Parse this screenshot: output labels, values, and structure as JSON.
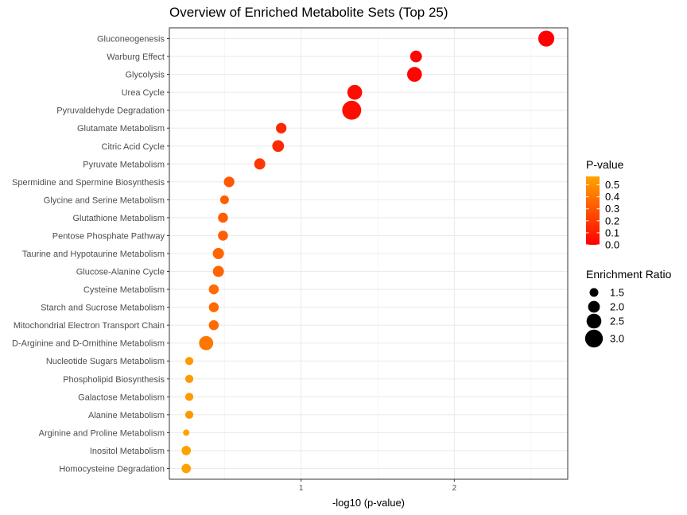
{
  "chart_data": {
    "type": "scatter",
    "title": "Overview of Enriched Metabolite Sets (Top 25)",
    "xlabel": "-log10 (p-value)",
    "ylabel": "",
    "xlim": [
      0.14,
      2.74
    ],
    "x_ticks": [
      1,
      2
    ],
    "x_tick_labels": [
      "1",
      "2"
    ],
    "grid": true,
    "points": [
      {
        "name": "Gluconeogenesis",
        "x": 2.6,
        "p_value": 0.0025,
        "enrichment_ratio": 2.7
      },
      {
        "name": "Warburg Effect",
        "x": 1.75,
        "p_value": 0.018,
        "enrichment_ratio": 2.0
      },
      {
        "name": "Glycolysis",
        "x": 1.74,
        "p_value": 0.018,
        "enrichment_ratio": 2.5
      },
      {
        "name": "Urea Cycle",
        "x": 1.35,
        "p_value": 0.045,
        "enrichment_ratio": 2.5
      },
      {
        "name": "Pyruvaldehyde Degradation",
        "x": 1.33,
        "p_value": 0.047,
        "enrichment_ratio": 3.2
      },
      {
        "name": "Glutamate Metabolism",
        "x": 0.87,
        "p_value": 0.135,
        "enrichment_ratio": 1.8
      },
      {
        "name": "Citric Acid Cycle",
        "x": 0.85,
        "p_value": 0.14,
        "enrichment_ratio": 2.0
      },
      {
        "name": "Pyruvate Metabolism",
        "x": 0.73,
        "p_value": 0.19,
        "enrichment_ratio": 1.9
      },
      {
        "name": "Spermidine and Spermine Biosynthesis",
        "x": 0.53,
        "p_value": 0.3,
        "enrichment_ratio": 1.8
      },
      {
        "name": "Glycine and Serine Metabolism",
        "x": 0.5,
        "p_value": 0.32,
        "enrichment_ratio": 1.5
      },
      {
        "name": "Glutathione Metabolism",
        "x": 0.49,
        "p_value": 0.32,
        "enrichment_ratio": 1.7
      },
      {
        "name": "Pentose Phosphate Pathway",
        "x": 0.49,
        "p_value": 0.32,
        "enrichment_ratio": 1.7
      },
      {
        "name": "Taurine and Hypotaurine Metabolism",
        "x": 0.46,
        "p_value": 0.35,
        "enrichment_ratio": 1.9
      },
      {
        "name": "Glucose-Alanine Cycle",
        "x": 0.46,
        "p_value": 0.35,
        "enrichment_ratio": 1.9
      },
      {
        "name": "Cysteine Metabolism",
        "x": 0.43,
        "p_value": 0.37,
        "enrichment_ratio": 1.7
      },
      {
        "name": "Starch and Sucrose Metabolism",
        "x": 0.43,
        "p_value": 0.37,
        "enrichment_ratio": 1.7
      },
      {
        "name": "Mitochondrial Electron Transport Chain",
        "x": 0.43,
        "p_value": 0.37,
        "enrichment_ratio": 1.7
      },
      {
        "name": "D-Arginine and D-Ornithine Metabolism",
        "x": 0.38,
        "p_value": 0.41,
        "enrichment_ratio": 2.4
      },
      {
        "name": "Nucleotide Sugars Metabolism",
        "x": 0.27,
        "p_value": 0.53,
        "enrichment_ratio": 1.4
      },
      {
        "name": "Phospholipid Biosynthesis",
        "x": 0.27,
        "p_value": 0.53,
        "enrichment_ratio": 1.4
      },
      {
        "name": "Galactose Metabolism",
        "x": 0.27,
        "p_value": 0.53,
        "enrichment_ratio": 1.4
      },
      {
        "name": "Alanine Metabolism",
        "x": 0.27,
        "p_value": 0.53,
        "enrichment_ratio": 1.4
      },
      {
        "name": "Arginine and Proline Metabolism",
        "x": 0.25,
        "p_value": 0.56,
        "enrichment_ratio": 1.1
      },
      {
        "name": "Inositol Metabolism",
        "x": 0.25,
        "p_value": 0.56,
        "enrichment_ratio": 1.6
      },
      {
        "name": "Homocysteine Degradation",
        "x": 0.25,
        "p_value": 0.56,
        "enrichment_ratio": 1.6
      }
    ],
    "color_legend": {
      "title": "P-value",
      "range": [
        0.0,
        0.57
      ],
      "low_color": "#ff0000",
      "high_color": "#ffa500",
      "breaks": [
        0.0,
        0.1,
        0.2,
        0.3,
        0.4,
        0.5
      ],
      "labels": [
        "0.0",
        "0.1",
        "0.2",
        "0.3",
        "0.4",
        "0.5"
      ]
    },
    "size_legend": {
      "title": "Enrichment Ratio",
      "breaks": [
        1.5,
        2.0,
        2.5,
        3.0
      ],
      "labels": [
        "1.5",
        "2.0",
        "2.5",
        "3.0"
      ],
      "color": "#000000"
    },
    "legend_placement": "right"
  }
}
